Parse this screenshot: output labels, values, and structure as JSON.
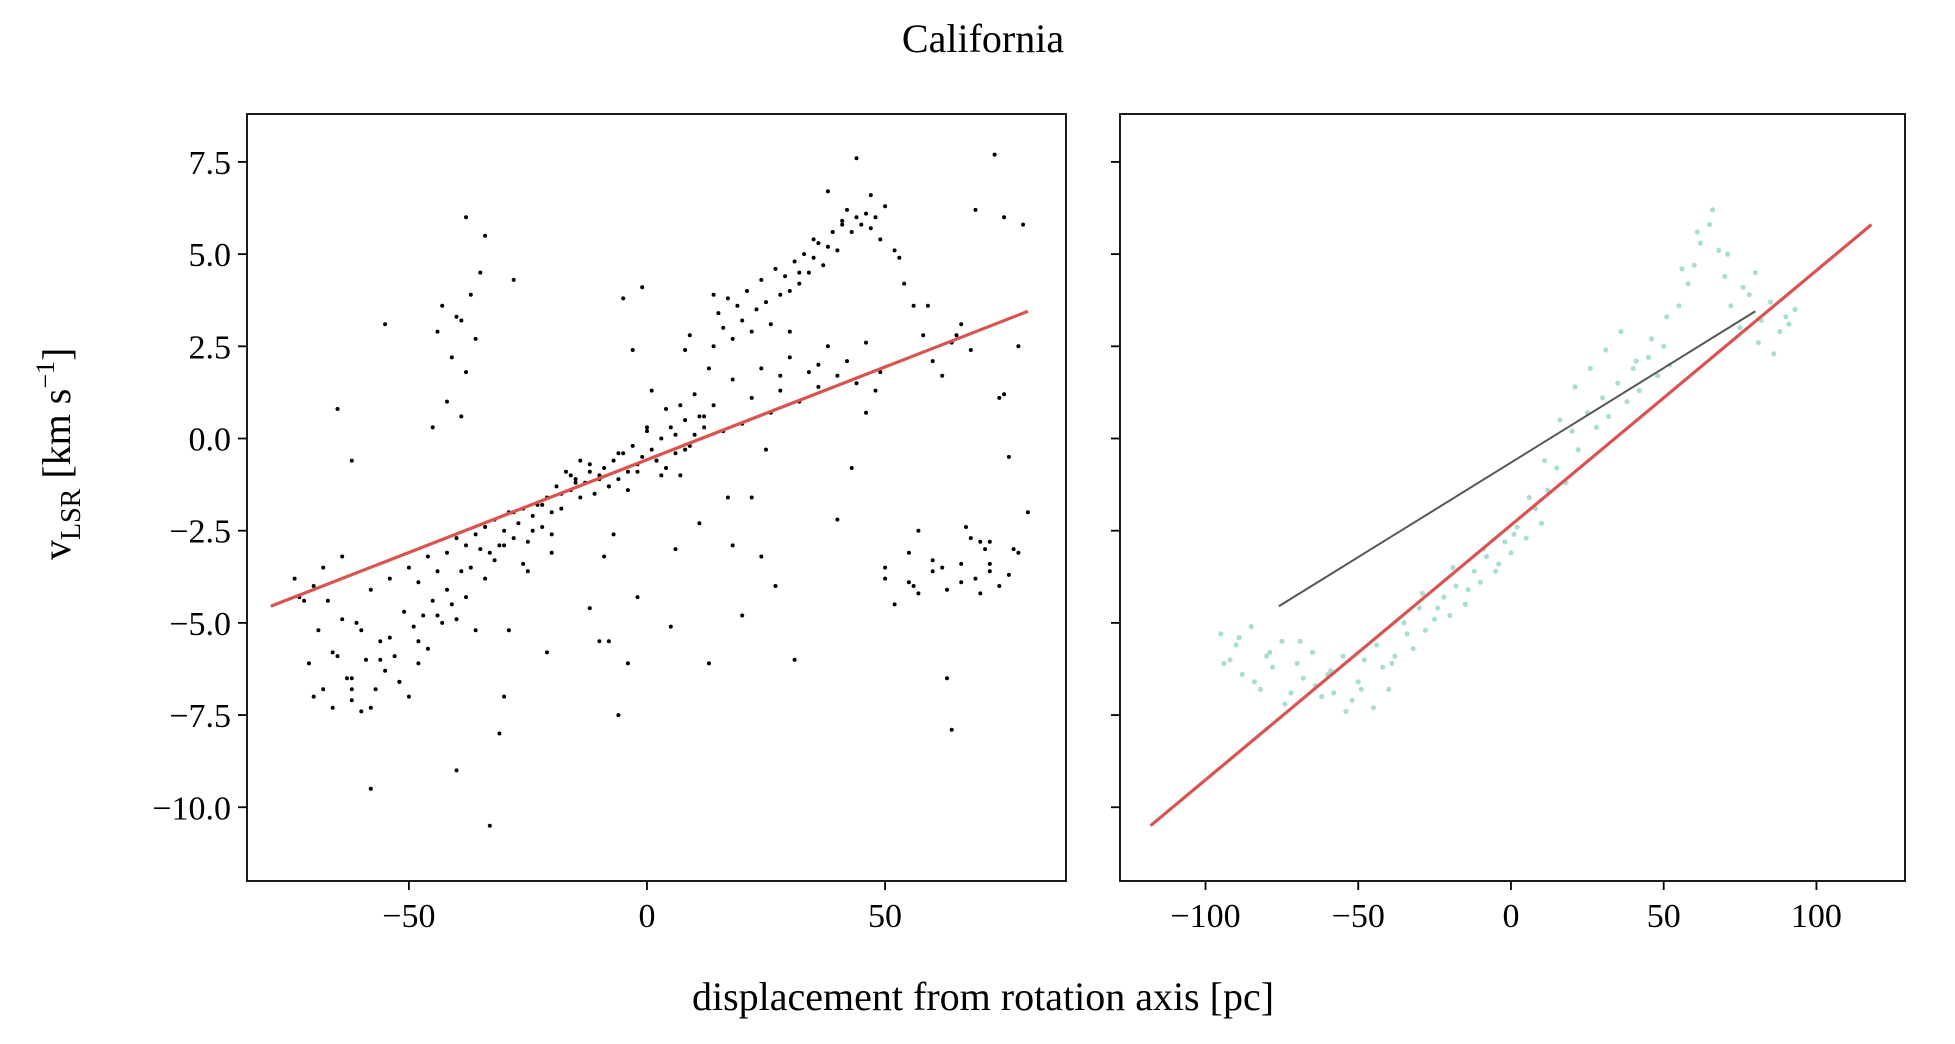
{
  "figure": {
    "title": "California",
    "xlabel": "displacement from rotation axis [pc]",
    "ylabel_main": "v",
    "ylabel_sub": "LSR",
    "ylabel_unit_a": " [km s",
    "ylabel_unit_sup": "−1",
    "ylabel_unit_b": "]"
  },
  "colors": {
    "points_left": "#000000",
    "points_right": "#66c2a5",
    "fit_line": "#d9534f",
    "grey_line": "#555555"
  },
  "chart_data": [
    {
      "type": "scatter",
      "xlim": [
        -84,
        88
      ],
      "ylim": [
        -12,
        8.8
      ],
      "xticks": [
        -50,
        0,
        50
      ],
      "xtick_labels": [
        "−50",
        "0",
        "50"
      ],
      "yticks": [
        7.5,
        5.0,
        2.5,
        0.0,
        -2.5,
        -5.0,
        -7.5,
        -10.0
      ],
      "ytick_labels": [
        "7.5",
        "5.0",
        "2.5",
        "0.0",
        "−2.5",
        "−5.0",
        "−7.5",
        "−10.0"
      ],
      "grid": false,
      "series": [
        {
          "x": [
            -73,
            -71,
            -70,
            -69,
            -68,
            -67,
            -66,
            -65,
            -64,
            -63,
            -62,
            -61,
            -60,
            -59,
            -58,
            -57,
            -56,
            -55,
            -54,
            -53,
            -52,
            -51,
            -50,
            -49,
            -48,
            -47,
            -46,
            -45,
            -44,
            -43,
            -42,
            -41,
            -40,
            -39,
            -38,
            -37,
            -36,
            -35,
            -34,
            -33,
            -32,
            -31,
            -30,
            -29,
            -28,
            -27,
            -26,
            -25,
            -24,
            -23,
            -22,
            -21,
            -20,
            -19,
            -18,
            -17,
            -16,
            -15,
            -14,
            -13,
            -12,
            -11,
            -10,
            -9,
            -8,
            -7,
            -6,
            -5,
            -4,
            -3,
            -2,
            -1,
            0,
            1,
            2,
            3,
            4,
            5,
            6,
            7,
            8,
            9,
            10,
            11,
            12,
            13,
            14,
            15,
            16,
            17,
            18,
            19,
            20,
            21,
            22,
            23,
            24,
            25,
            26,
            27,
            28,
            29,
            30,
            31,
            32,
            33,
            34,
            35,
            36,
            37,
            38,
            39,
            40,
            41,
            42,
            43,
            44,
            45,
            46,
            47,
            48,
            49,
            50,
            52,
            54,
            56,
            58,
            60,
            62,
            64,
            66,
            68,
            70,
            72,
            74,
            76,
            78,
            -72,
            -70,
            -68,
            -66,
            -64,
            -62,
            -60,
            -58,
            -56,
            -54,
            -52,
            -50,
            -48,
            -46,
            -44,
            -42,
            -40,
            -38,
            -36,
            -34,
            -32,
            -30,
            -28,
            -26,
            -24,
            -22,
            -20,
            -18,
            -16,
            -14,
            -12,
            -10,
            -8,
            -6,
            -4,
            -2,
            0,
            2,
            4,
            6,
            8,
            10,
            12,
            14,
            16,
            18,
            20,
            22,
            24,
            26,
            28,
            30,
            32,
            34,
            36,
            38,
            40,
            42,
            44,
            46,
            48,
            50,
            55,
            57,
            60,
            63,
            66,
            69,
            72,
            75,
            78,
            -45,
            -44,
            -43,
            -42,
            -41,
            -40,
            -39,
            -38,
            -37,
            -36,
            -35,
            -34,
            -38,
            -39,
            -40,
            -65,
            -62,
            -58,
            -33,
            -31,
            -30,
            -29,
            -28,
            -25,
            -21,
            -12,
            -10,
            -9,
            -7,
            -5,
            -3,
            -1,
            1,
            3,
            5,
            7,
            9,
            11,
            13,
            18,
            22,
            25,
            28,
            30,
            32,
            35,
            38,
            41,
            44,
            47,
            50,
            52,
            55,
            57,
            60,
            63,
            64,
            66,
            68,
            70,
            72,
            73,
            75,
            77,
            79,
            80,
            -74,
            -62,
            -55,
            -48,
            -20,
            -15,
            -8,
            -6,
            -4,
            -2,
            6,
            8,
            14,
            17,
            20,
            24,
            27,
            31,
            36,
            40,
            43,
            46,
            49,
            53,
            56,
            59,
            62,
            65,
            67,
            69,
            71,
            74,
            76
          ],
          "y": [
            -4.3,
            -6.1,
            -7.0,
            -5.2,
            -6.8,
            -4.4,
            -7.3,
            -5.9,
            -3.2,
            -6.5,
            -7.1,
            -5.0,
            -7.4,
            -6.0,
            -4.1,
            -6.8,
            -5.5,
            -6.3,
            -3.8,
            -5.9,
            -6.6,
            -4.7,
            -3.5,
            -5.1,
            -3.9,
            -4.8,
            -3.2,
            -4.4,
            -3.6,
            -5.0,
            -3.1,
            -4.5,
            -2.7,
            -3.6,
            -2.9,
            -3.5,
            -2.6,
            -3.0,
            -2.4,
            -3.1,
            -2.2,
            -2.9,
            -2.5,
            -2.0,
            -2.7,
            -2.3,
            -1.9,
            -2.8,
            -2.1,
            -1.8,
            -2.4,
            -1.6,
            -2.0,
            -1.3,
            -1.9,
            -0.9,
            -1.4,
            -1.1,
            -0.6,
            -1.2,
            -0.9,
            -1.5,
            -1.0,
            -0.8,
            -1.3,
            -0.6,
            -1.1,
            -0.4,
            -0.9,
            -0.2,
            -0.7,
            -0.5,
            0.2,
            -0.3,
            -0.6,
            0.0,
            -0.8,
            0.3,
            -0.4,
            -1.0,
            0.5,
            -0.2,
            0.1,
            0.6,
            0.3,
            1.9,
            2.5,
            3.4,
            3.0,
            3.8,
            2.7,
            3.6,
            3.2,
            4.0,
            2.9,
            3.5,
            4.3,
            3.7,
            3.1,
            4.6,
            3.9,
            4.4,
            4.0,
            4.8,
            4.2,
            5.0,
            4.5,
            4.9,
            5.3,
            4.7,
            5.2,
            5.6,
            5.1,
            5.9,
            6.2,
            5.6,
            6.0,
            5.8,
            6.1,
            5.7,
            6.0,
            5.4,
            6.3,
            5.1,
            4.2,
            3.6,
            2.8,
            2.1,
            1.7,
            2.6,
            3.1,
            2.4,
            -2.8,
            -3.4,
            -4.0,
            -3.7,
            -3.1,
            -4.4,
            -4.0,
            -3.5,
            -5.8,
            -4.9,
            -6.5,
            -5.2,
            -7.3,
            -6.0,
            -5.4,
            -6.6,
            -7.0,
            -6.1,
            -5.7,
            -4.8,
            -4.1,
            -4.9,
            -4.3,
            -5.2,
            -3.8,
            -3.3,
            -2.9,
            -2.0,
            -3.4,
            -2.5,
            -1.8,
            -2.6,
            -1.5,
            -1.0,
            -1.6,
            -0.7,
            -1.1,
            -1.3,
            -0.4,
            -1.4,
            -0.9,
            0.3,
            -0.6,
            0.8,
            0.1,
            -0.3,
            1.2,
            0.6,
            0.9,
            0.2,
            1.6,
            0.4,
            1.1,
            1.9,
            0.7,
            1.3,
            2.2,
            1.0,
            1.8,
            1.4,
            2.5,
            1.7,
            2.1,
            1.5,
            2.6,
            1.3,
            -3.5,
            -3.9,
            -4.2,
            -3.6,
            -4.1,
            -3.4,
            -3.8,
            -2.8,
            1.2,
            2.5,
            0.3,
            2.9,
            3.6,
            1.0,
            2.2,
            3.3,
            0.6,
            1.8,
            3.9,
            2.7,
            4.5,
            5.5,
            6.0,
            3.2,
            -9.0,
            0.8,
            -6.8,
            -9.5,
            -10.5,
            -8.0,
            -7.0,
            -5.2,
            4.3,
            -3.6,
            -5.8,
            -4.6,
            -5.5,
            -3.2,
            -2.6,
            3.8,
            2.4,
            4.1,
            1.3,
            -1.0,
            -5.1,
            0.9,
            2.8,
            -2.3,
            -6.1,
            -2.9,
            -1.6,
            -0.3,
            1.7,
            2.9,
            4.5,
            5.4,
            6.7,
            5.8,
            7.6,
            6.6,
            -3.8,
            -4.5,
            -3.1,
            -2.5,
            -3.3,
            -6.5,
            -7.9,
            -3.9,
            -2.7,
            -4.2,
            -3.6,
            7.7,
            6.0,
            -3.0,
            5.8,
            -2.0,
            -3.8,
            -0.6,
            3.1,
            -5.5,
            -3.1,
            -1.2,
            -5.5,
            -7.5,
            -6.1,
            -4.3,
            -3.0,
            2.4,
            3.9,
            -1.6,
            -4.8,
            -3.2,
            -4.0,
            -6.0,
            2.0,
            -2.2,
            -0.8,
            0.7,
            1.8,
            4.9,
            -4.0,
            3.6,
            -3.5,
            2.8,
            -2.4,
            6.2,
            -3.0,
            1.1,
            -0.5
          ]
        }
      ],
      "fit_line": {
        "x": [
          -79,
          80
        ],
        "y": [
          -4.55,
          3.45
        ]
      }
    },
    {
      "type": "scatter",
      "xlim": [
        -128,
        129
      ],
      "ylim": [
        -12,
        8.8
      ],
      "xticks": [
        -100,
        -50,
        0,
        50,
        100
      ],
      "xtick_labels": [
        "−100",
        "−50",
        "0",
        "50",
        "100"
      ],
      "yticks": [
        7.5,
        5.0,
        2.5,
        0.0,
        -2.5,
        -5.0,
        -7.5,
        -10.0
      ],
      "ytick_labels": [],
      "grid": false,
      "series": [
        {
          "x": [
            -95,
            -92,
            -90,
            -88,
            -85,
            -82,
            -80,
            -78,
            -75,
            -72,
            -70,
            -68,
            -65,
            -62,
            -60,
            -58,
            -55,
            -52,
            -50,
            -48,
            -45,
            -42,
            -40,
            -38,
            -35,
            -32,
            -30,
            -28,
            -25,
            -22,
            -20,
            -18,
            -15,
            -12,
            -10,
            -8,
            -5,
            -2,
            0,
            2,
            5,
            8,
            10,
            12,
            15,
            18,
            20,
            22,
            25,
            28,
            30,
            32,
            35,
            38,
            40,
            42,
            45,
            48,
            50,
            52,
            55,
            58,
            60,
            62,
            65,
            68,
            70,
            72,
            75,
            78,
            80,
            82,
            85,
            88,
            90,
            93,
            -94,
            -89,
            -84,
            -79,
            -74,
            -69,
            -64,
            -59,
            -54,
            -49,
            -44,
            -39,
            -34,
            -29,
            -24,
            -19,
            -14,
            -9,
            -4,
            1,
            6,
            11,
            16,
            21,
            26,
            31,
            36,
            41,
            46,
            51,
            56,
            61,
            66,
            71,
            76,
            81,
            86,
            91
          ],
          "y": [
            -5.3,
            -6.0,
            -5.6,
            -6.4,
            -5.1,
            -6.8,
            -5.9,
            -6.2,
            -5.5,
            -6.9,
            -6.1,
            -6.5,
            -5.8,
            -7.0,
            -6.4,
            -6.9,
            -5.9,
            -7.1,
            -6.6,
            -6.0,
            -7.3,
            -6.2,
            -6.8,
            -5.9,
            -5.0,
            -5.7,
            -4.6,
            -5.2,
            -4.9,
            -4.3,
            -4.8,
            -4.0,
            -4.5,
            -3.6,
            -3.9,
            -3.2,
            -3.6,
            -2.8,
            -3.1,
            -2.4,
            -2.7,
            -1.9,
            -2.3,
            -1.4,
            -0.8,
            -1.2,
            0.2,
            -0.3,
            0.7,
            0.3,
            1.1,
            0.6,
            1.5,
            1.0,
            1.9,
            1.3,
            2.2,
            1.7,
            2.5,
            2.0,
            3.6,
            4.2,
            4.7,
            5.3,
            5.8,
            5.1,
            4.4,
            3.6,
            3.0,
            3.9,
            4.5,
            3.2,
            3.7,
            2.9,
            3.3,
            3.5,
            -6.1,
            -5.4,
            -6.6,
            -5.8,
            -7.2,
            -5.5,
            -6.7,
            -6.3,
            -7.4,
            -6.8,
            -5.6,
            -6.1,
            -5.3,
            -4.2,
            -4.6,
            -3.5,
            -4.1,
            -3.0,
            -3.4,
            -2.6,
            -1.6,
            -0.6,
            0.5,
            1.4,
            1.9,
            2.4,
            2.9,
            2.1,
            2.7,
            3.3,
            4.6,
            5.6,
            6.2,
            5.0,
            4.1,
            2.6,
            2.3,
            3.1
          ]
        }
      ],
      "fit_line": {
        "x": [
          -118,
          118
        ],
        "y": [
          -10.5,
          5.8
        ]
      },
      "grey_line": {
        "x": [
          -76,
          80
        ],
        "y": [
          -4.55,
          3.45
        ]
      }
    }
  ]
}
